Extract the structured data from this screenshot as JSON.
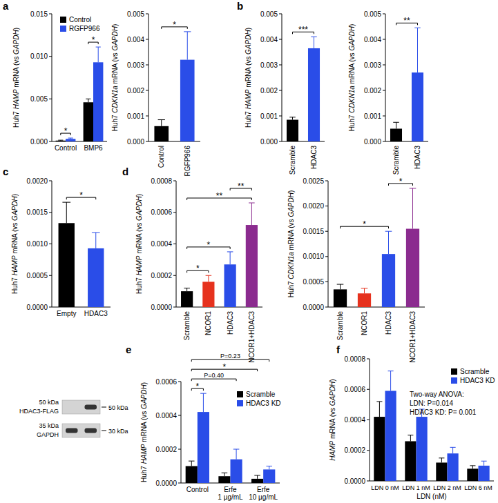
{
  "chart_data": [
    {
      "type": "bar",
      "panel": "a",
      "y_label": "Huh7 HAMP mRNA (vs GAPDH)",
      "categories": [
        "Control",
        "BMP6"
      ],
      "series": [
        {
          "name": "Control",
          "color": "#000000",
          "values": [
            0.0001,
            0.0046
          ],
          "errors": [
            5e-05,
            0.0004
          ]
        },
        {
          "name": "RGFP966",
          "color": "#2a4de8",
          "values": [
            0.0003,
            0.0093
          ],
          "errors": [
            0.0001,
            0.0018
          ]
        }
      ],
      "ylim": [
        0,
        0.015
      ],
      "yticks": [
        {
          "value": 0,
          "label": "0.000"
        },
        0.005,
        {
          "value": 0.01,
          "label": "0.010"
        },
        0.015
      ],
      "legend": "upper left",
      "annotations": [
        {
          "text": "*",
          "from": 0,
          "to": 1
        },
        {
          "text": "*",
          "from": 2,
          "to": 3
        }
      ]
    },
    {
      "type": "bar",
      "y_label": "Huh7 CDKN1a mRNA (vs GAPDH)",
      "categories": [
        "Control",
        "RGFP966"
      ],
      "series": [
        {
          "colors": [
            "#000000",
            "#2a4de8"
          ],
          "values": [
            0.0006,
            0.0032
          ],
          "errors": [
            0.00025,
            0.0011
          ]
        }
      ],
      "ylim": [
        0,
        0.005
      ],
      "yticks": [
        {
          "value": 0,
          "label": "0.000"
        },
        0.001,
        0.002,
        0.003,
        0.004,
        0.005
      ],
      "annotations": [
        {
          "text": "*",
          "from": 0,
          "to": 1
        }
      ]
    },
    {
      "type": "bar",
      "panel": "b",
      "y_label": "Huh7 HAMP mRNA (vs GAPDH)",
      "categories": [
        "Scramble",
        "HDAC3"
      ],
      "series": [
        {
          "colors": [
            "#000000",
            "#2a4de8"
          ],
          "values": [
            0.00085,
            0.00365
          ],
          "errors": [
            0.0001,
            0.00045
          ]
        }
      ],
      "ylim": [
        0,
        0.005
      ],
      "yticks": [
        {
          "value": 0,
          "label": "0.000"
        },
        0.001,
        0.002,
        0.003,
        0.004,
        0.005
      ],
      "annotations": [
        {
          "text": "***",
          "from": 0,
          "to": 1
        }
      ]
    },
    {
      "type": "bar",
      "y_label": "Huh7 CDKN1a mRNA (vs GAPDH)",
      "categories": [
        "Scramble",
        "HDAC3"
      ],
      "series": [
        {
          "colors": [
            "#000000",
            "#2a4de8"
          ],
          "values": [
            0.0005,
            0.0027
          ],
          "errors": [
            0.00025,
            0.00175
          ]
        }
      ],
      "ylim": [
        0,
        0.005
      ],
      "yticks": [
        {
          "value": 0,
          "label": "0.000"
        },
        0.001,
        0.002,
        0.003,
        0.004,
        0.005
      ],
      "annotations": [
        {
          "text": "**",
          "from": 0,
          "to": 1
        }
      ]
    },
    {
      "type": "bar",
      "panel": "c",
      "y_label": "Huh7 HAMP mRNA (vs GAPDH)",
      "categories": [
        "Empty",
        "HDAC3"
      ],
      "series": [
        {
          "colors": [
            "#000000",
            "#2a4de8"
          ],
          "values": [
            0.00133,
            0.00093
          ],
          "errors": [
            0.00033,
            0.00025
          ]
        }
      ],
      "ylim": [
        0,
        0.002
      ],
      "yticks": [
        {
          "value": 0,
          "label": "0.0000"
        },
        0.0005,
        {
          "value": 0.001,
          "label": "0.0010"
        },
        0.0015,
        {
          "value": 0.002,
          "label": "0.0020"
        }
      ],
      "annotations": [
        {
          "text": "*",
          "from": 0,
          "to": 1
        }
      ],
      "blot": {
        "left_labels": [
          "50 kDa",
          "HDAC3-FLAG",
          "35 kDa",
          "GAPDH"
        ],
        "right_labels": [
          "50 kDa",
          "30 kDa"
        ]
      }
    },
    {
      "type": "bar",
      "panel": "d",
      "y_label": "Huh7 HAMP mRNA (vs GAPDH)",
      "categories": [
        "Scramble",
        "NCOR1",
        "HDAC3",
        "NCOR1+HDAC3"
      ],
      "series": [
        {
          "colors": [
            "#000000",
            "#e6321e",
            "#2a4de8",
            "#8b2b8f"
          ],
          "values": [
            0.0001,
            0.00016,
            0.00027,
            0.00052
          ],
          "errors": [
            2e-05,
            4e-05,
            8e-05,
            0.00014
          ]
        }
      ],
      "ylim": [
        0,
        0.0008
      ],
      "yticks": [
        {
          "value": 0,
          "label": "0.0000"
        },
        0.0002,
        0.0004,
        0.0006,
        0.0008
      ],
      "annotations": [
        {
          "text": "*",
          "from": 0,
          "to": 1
        },
        {
          "text": "*",
          "from": 0,
          "to": 2
        },
        {
          "text": "**",
          "from": 0,
          "to": 3
        },
        {
          "text": "**",
          "from": 2,
          "to": 3
        }
      ]
    },
    {
      "type": "bar",
      "y_label": "Huh7 CDKN1a mRNA (vs GAPDH)",
      "categories": [
        "Scramble",
        "NCOR1",
        "HDAC3",
        "NCOR1+HDAC3"
      ],
      "series": [
        {
          "colors": [
            "#000000",
            "#e6321e",
            "#2a4de8",
            "#8b2b8f"
          ],
          "values": [
            0.00035,
            0.00027,
            0.00105,
            0.00155
          ],
          "errors": [
            0.0001,
            0.0001,
            0.00045,
            0.0008
          ]
        }
      ],
      "ylim": [
        0,
        0.0025
      ],
      "yticks": [
        {
          "value": 0,
          "label": "0.0000"
        },
        0.0005,
        {
          "value": 0.001,
          "label": "0.0010"
        },
        0.0015,
        {
          "value": 0.002,
          "label": "0.0020"
        },
        0.0025
      ],
      "annotations": [
        {
          "text": "*",
          "from": 0,
          "to": 2
        },
        {
          "text": "*",
          "from": 2,
          "to": 3
        }
      ]
    },
    {
      "type": "bar",
      "panel": "e",
      "y_label": "Huh7 HAMP mRNA (vs GAPDH)",
      "categories": [
        "Control",
        "Erfe 1 µg/mL",
        "Erfe 10 µg/mL"
      ],
      "series": [
        {
          "name": "Scramble",
          "color": "#000000",
          "values": [
            0.0001,
            4e-05,
            2.5e-05
          ],
          "errors": [
            3e-05,
            2e-05,
            2e-05
          ]
        },
        {
          "name": "HDAC3 KD",
          "color": "#2a4de8",
          "values": [
            0.00042,
            0.00014,
            8e-05
          ],
          "errors": [
            0.00011,
            6e-05,
            2e-05
          ]
        }
      ],
      "ylim": [
        0,
        0.0006
      ],
      "yticks": [
        {
          "value": 0,
          "label": "0.0000"
        },
        0.0002,
        0.0004,
        0.0006
      ],
      "legend": "upper right",
      "annotations": [
        {
          "text": "*",
          "from": 0,
          "to": 1
        },
        {
          "text": "P=0.40",
          "from": 0,
          "to": 3
        },
        {
          "text": "*",
          "from": 0,
          "to": 4
        },
        {
          "text": "P=0.23",
          "from": 0,
          "to": 5
        }
      ]
    },
    {
      "type": "bar",
      "panel": "f",
      "y_label": "HAMP mRNA (vs GAPDH)",
      "x_label": "LDN (nM)",
      "categories": [
        "LDN 0 nM",
        "LDN 1 nM",
        "LDN 2 nM",
        "LDN 6 nM"
      ],
      "series": [
        {
          "name": "Scramble",
          "color": "#000000",
          "values": [
            0.00042,
            0.00026,
            0.00012,
            8e-05
          ],
          "errors": [
            0.0001,
            4e-05,
            3e-05,
            2e-05
          ]
        },
        {
          "name": "HDAC3 KD",
          "color": "#2a4de8",
          "values": [
            0.00059,
            0.00042,
            0.00018,
            0.0001
          ],
          "errors": [
            0.00013,
            5e-05,
            4e-05,
            3e-05
          ]
        }
      ],
      "ylim": [
        0,
        0.0008
      ],
      "yticks": [
        {
          "value": 0,
          "label": "0.0000"
        },
        0.0002,
        0.0004,
        0.0006,
        0.0008
      ],
      "legend": "upper right",
      "note": [
        "Two-way ANOVA:",
        "LDN: P=0.014",
        "HDAC3 KD: P= 0.001"
      ]
    }
  ]
}
